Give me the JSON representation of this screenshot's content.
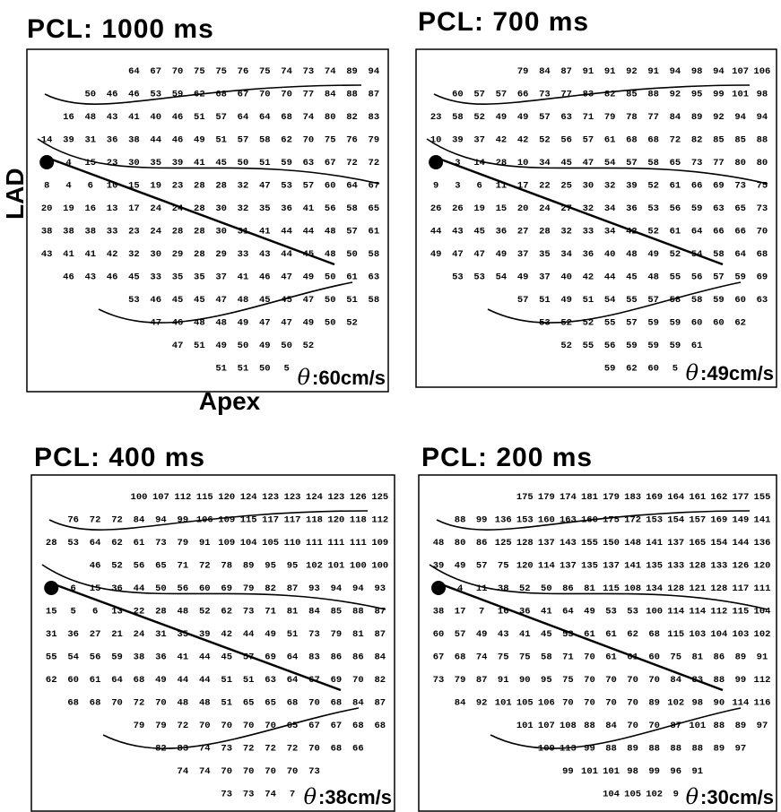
{
  "panels": [
    {
      "title": "PCL: 1000 ms",
      "symbol": "θ",
      "velocity": ":60cm/s",
      "side_label": "LAD",
      "bottom_label": "Apex",
      "rows": [
        [
          64,
          67,
          70,
          75,
          75,
          76,
          75,
          74,
          73,
          74,
          89,
          94
        ],
        [
          50,
          46,
          46,
          53,
          59,
          62,
          68,
          67,
          70,
          70,
          77,
          84,
          88,
          87
        ],
        [
          16,
          48,
          43,
          41,
          40,
          46,
          51,
          57,
          64,
          64,
          68,
          74,
          80,
          82,
          83
        ],
        [
          14,
          39,
          31,
          36,
          38,
          44,
          46,
          49,
          51,
          57,
          58,
          62,
          70,
          75,
          76,
          79
        ],
        [
          4,
          15,
          23,
          30,
          35,
          39,
          41,
          45,
          50,
          51,
          59,
          63,
          67,
          72,
          72
        ],
        [
          8,
          4,
          6,
          10,
          15,
          19,
          23,
          28,
          28,
          32,
          47,
          53,
          57,
          60,
          64,
          67
        ],
        [
          20,
          19,
          16,
          13,
          17,
          24,
          24,
          28,
          30,
          32,
          35,
          36,
          41,
          56,
          58,
          65
        ],
        [
          38,
          38,
          38,
          33,
          23,
          24,
          28,
          28,
          30,
          31,
          41,
          44,
          44,
          48,
          57,
          61
        ],
        [
          43,
          41,
          41,
          42,
          32,
          30,
          29,
          28,
          29,
          33,
          43,
          44,
          45,
          48,
          50,
          58
        ],
        [
          46,
          43,
          46,
          45,
          33,
          35,
          35,
          37,
          41,
          46,
          47,
          49,
          50,
          61,
          63
        ],
        [
          53,
          46,
          45,
          45,
          47,
          48,
          45,
          45,
          47,
          50,
          51,
          58
        ],
        [
          47,
          46,
          48,
          48,
          49,
          47,
          47,
          49,
          50,
          52
        ],
        [
          47,
          51,
          49,
          50,
          49,
          50,
          52
        ],
        [
          51,
          51,
          50,
          5
        ]
      ]
    },
    {
      "title": "PCL: 700 ms",
      "symbol": "θ",
      "velocity": ":49cm/s",
      "rows": [
        [
          79,
          84,
          87,
          91,
          91,
          92,
          91,
          94,
          98,
          94,
          107,
          106
        ],
        [
          60,
          57,
          57,
          66,
          73,
          77,
          83,
          82,
          85,
          88,
          92,
          95,
          99,
          101,
          98
        ],
        [
          23,
          58,
          52,
          49,
          49,
          57,
          63,
          71,
          79,
          78,
          77,
          84,
          89,
          92,
          94,
          94
        ],
        [
          10,
          39,
          37,
          42,
          42,
          52,
          56,
          57,
          61,
          68,
          68,
          72,
          82,
          85,
          85,
          88
        ],
        [
          3,
          14,
          28,
          10,
          34,
          45,
          47,
          54,
          57,
          58,
          65,
          73,
          77,
          80,
          80
        ],
        [
          9,
          3,
          6,
          11,
          17,
          22,
          25,
          30,
          32,
          39,
          52,
          61,
          66,
          69,
          73,
          75
        ],
        [
          26,
          26,
          19,
          15,
          20,
          24,
          27,
          32,
          34,
          36,
          53,
          56,
          59,
          63,
          65,
          73
        ],
        [
          44,
          43,
          45,
          36,
          27,
          28,
          32,
          33,
          34,
          42,
          52,
          61,
          64,
          66,
          66,
          70
        ],
        [
          49,
          47,
          47,
          49,
          37,
          35,
          34,
          36,
          40,
          48,
          49,
          52,
          54,
          58,
          64,
          68
        ],
        [
          53,
          53,
          54,
          49,
          37,
          40,
          42,
          44,
          45,
          48,
          55,
          56,
          57,
          59,
          69
        ],
        [
          57,
          51,
          49,
          51,
          54,
          55,
          57,
          58,
          58,
          59,
          60,
          63
        ],
        [
          53,
          52,
          52,
          55,
          57,
          59,
          59,
          60,
          60,
          62
        ],
        [
          52,
          55,
          56,
          59,
          59,
          59,
          61
        ],
        [
          59,
          62,
          60,
          5
        ]
      ]
    },
    {
      "title": "PCL: 400 ms",
      "symbol": "θ",
      "velocity": ":38cm/s",
      "rows": [
        [
          100,
          107,
          112,
          115,
          120,
          124,
          123,
          123,
          124,
          123,
          126,
          125
        ],
        [
          76,
          72,
          72,
          84,
          94,
          99,
          106,
          109,
          115,
          117,
          117,
          118,
          120,
          118,
          112
        ],
        [
          28,
          53,
          64,
          62,
          61,
          73,
          79,
          91,
          109,
          104,
          105,
          110,
          111,
          111,
          111,
          109
        ],
        [
          46,
          52,
          56,
          65,
          71,
          72,
          78,
          89,
          95,
          95,
          102,
          101,
          100,
          100
        ],
        [
          6,
          15,
          36,
          44,
          50,
          56,
          60,
          69,
          79,
          82,
          87,
          93,
          94,
          94,
          93
        ],
        [
          15,
          5,
          6,
          13,
          22,
          28,
          48,
          52,
          62,
          73,
          71,
          81,
          84,
          85,
          88,
          87
        ],
        [
          31,
          36,
          27,
          21,
          24,
          31,
          35,
          39,
          42,
          44,
          49,
          51,
          73,
          79,
          81,
          87
        ],
        [
          55,
          54,
          56,
          59,
          38,
          36,
          41,
          44,
          45,
          57,
          69,
          64,
          83,
          86,
          86,
          84
        ],
        [
          62,
          60,
          61,
          64,
          68,
          49,
          44,
          44,
          51,
          51,
          63,
          64,
          67,
          69,
          70,
          82
        ],
        [
          68,
          68,
          70,
          72,
          70,
          48,
          48,
          51,
          65,
          65,
          68,
          70,
          68,
          84,
          87
        ],
        [
          79,
          79,
          72,
          70,
          70,
          70,
          70,
          65,
          67,
          67,
          68,
          68
        ],
        [
          82,
          83,
          74,
          73,
          72,
          72,
          72,
          70,
          68,
          66
        ],
        [
          74,
          74,
          70,
          70,
          70,
          70,
          73
        ],
        [
          73,
          73,
          74,
          7
        ]
      ]
    },
    {
      "title": "PCL: 200 ms",
      "symbol": "θ",
      "velocity": ":30cm/s",
      "rows": [
        [
          175,
          179,
          174,
          181,
          179,
          183,
          169,
          164,
          161,
          162,
          177,
          155
        ],
        [
          88,
          99,
          136,
          153,
          160,
          163,
          160,
          175,
          172,
          153,
          154,
          157,
          169,
          149,
          141
        ],
        [
          48,
          80,
          86,
          125,
          128,
          137,
          143,
          155,
          150,
          148,
          141,
          137,
          165,
          154,
          144,
          136
        ],
        [
          39,
          49,
          57,
          75,
          120,
          114,
          137,
          135,
          137,
          141,
          135,
          133,
          128,
          133,
          126,
          120
        ],
        [
          4,
          11,
          38,
          52,
          50,
          86,
          81,
          115,
          108,
          134,
          128,
          121,
          128,
          117,
          111
        ],
        [
          38,
          17,
          7,
          16,
          36,
          41,
          64,
          49,
          53,
          53,
          100,
          114,
          114,
          112,
          115,
          104
        ],
        [
          60,
          57,
          49,
          43,
          41,
          45,
          53,
          61,
          61,
          62,
          68,
          115,
          103,
          104,
          103,
          102
        ],
        [
          67,
          68,
          74,
          75,
          75,
          58,
          71,
          70,
          61,
          61,
          60,
          75,
          81,
          86,
          89,
          91
        ],
        [
          73,
          79,
          87,
          91,
          90,
          95,
          75,
          70,
          70,
          70,
          70,
          84,
          83,
          88,
          99,
          112
        ],
        [
          84,
          92,
          101,
          105,
          106,
          70,
          70,
          70,
          70,
          89,
          102,
          98,
          90,
          114,
          116
        ],
        [
          101,
          107,
          108,
          88,
          84,
          70,
          70,
          87,
          101,
          88,
          89,
          97
        ],
        [
          109,
          113,
          99,
          88,
          89,
          88,
          88,
          88,
          89,
          97
        ],
        [
          99,
          101,
          101,
          98,
          99,
          96,
          91
        ],
        [
          104,
          105,
          102,
          9
        ]
      ]
    }
  ]
}
